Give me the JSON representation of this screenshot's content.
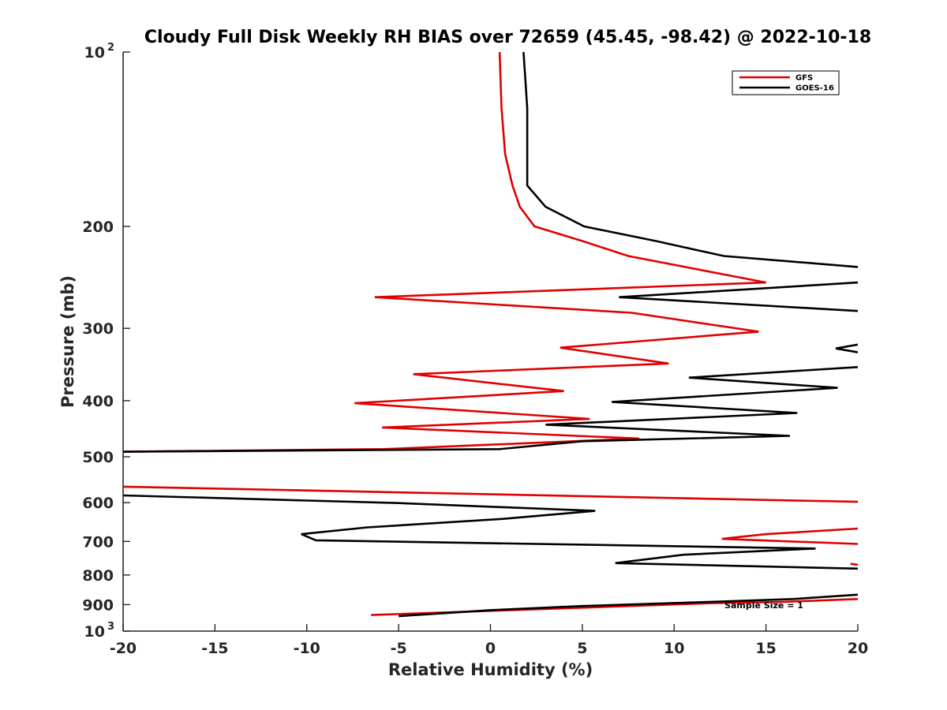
{
  "chart_data": {
    "type": "line",
    "title": "Cloudy Full Disk Weekly RH BIAS over 72659 (45.45, -98.42) @ 2022-10-18",
    "xlabel": "Relative Humidity (%)",
    "ylabel": "Pressure (mb)",
    "xlim": [
      -20,
      20
    ],
    "ylim": [
      100,
      1000
    ],
    "y_scale": "log",
    "y_reversed": true,
    "x_ticks": [
      "-20",
      "-15",
      "-10",
      "-5",
      "0",
      "5",
      "10",
      "15",
      "20"
    ],
    "y_ticks": [
      {
        "value": 100,
        "base": "10",
        "exp": "2"
      },
      {
        "value": 200,
        "label": "200"
      },
      {
        "value": 300,
        "label": "300"
      },
      {
        "value": 400,
        "label": "400"
      },
      {
        "value": 500,
        "label": "500"
      },
      {
        "value": 600,
        "label": "600"
      },
      {
        "value": 700,
        "label": "700"
      },
      {
        "value": 800,
        "label": "800"
      },
      {
        "value": 900,
        "label": "900"
      },
      {
        "value": 1000,
        "base": "10",
        "exp": "3"
      }
    ],
    "grid": false,
    "legend_position": "top-right",
    "annotation": "Sample Size = 1",
    "series": [
      {
        "name": "GFS",
        "color": "#e00000",
        "segments": [
          [
            [
              0.5,
              100
            ],
            [
              0.6,
              125
            ],
            [
              0.8,
              150
            ],
            [
              1.2,
              170
            ],
            [
              1.6,
              185
            ],
            [
              2.4,
              200
            ],
            [
              5,
              212
            ],
            [
              7.5,
              225
            ],
            [
              15,
              250
            ],
            [
              -6.3,
              265
            ],
            [
              7.7,
              282
            ],
            [
              14.6,
              304
            ],
            [
              3.8,
              324
            ],
            [
              9.7,
              345
            ],
            [
              -4.2,
              360
            ],
            [
              4,
              385
            ],
            [
              -7.4,
              404
            ],
            [
              5.4,
              430
            ],
            [
              -5.9,
              445
            ],
            [
              8.1,
              465
            ],
            [
              -5.8,
              485
            ],
            [
              -20,
              490
            ]
          ],
          [
            [
              -20,
              563
            ],
            [
              20,
              598
            ]
          ],
          [
            [
              20,
              665
            ],
            [
              15,
              680
            ],
            [
              12.6,
              693
            ],
            [
              20,
              707
            ]
          ],
          [
            [
              19.6,
              765
            ],
            [
              20,
              768
            ]
          ],
          [
            [
              20,
              880
            ],
            [
              16,
              890
            ],
            [
              12,
              895
            ],
            [
              -6.5,
              938
            ]
          ]
        ]
      },
      {
        "name": "GOES-16",
        "color": "#000000",
        "segments": [
          [
            [
              1.8,
              100
            ],
            [
              2,
              125
            ],
            [
              2,
              150
            ],
            [
              2,
              170
            ],
            [
              3,
              185
            ],
            [
              5.1,
              200
            ],
            [
              9,
              212
            ],
            [
              12.7,
              225
            ],
            [
              20,
              235
            ]
          ],
          [
            [
              20,
              250
            ],
            [
              7,
              265
            ],
            [
              20,
              280
            ]
          ],
          [
            [
              20,
              320
            ],
            [
              18.8,
              325
            ],
            [
              20,
              330
            ]
          ],
          [
            [
              20,
              350
            ],
            [
              10.8,
              365
            ],
            [
              18.9,
              380
            ],
            [
              6.6,
              402
            ],
            [
              16.7,
              420
            ],
            [
              3,
              440
            ],
            [
              16.3,
              460
            ],
            [
              5,
              470
            ],
            [
              0.5,
              485
            ],
            [
              -20,
              490
            ]
          ],
          [
            [
              -20,
              583
            ],
            [
              -5,
              601
            ],
            [
              5.7,
              620
            ],
            [
              0.7,
              640
            ],
            [
              -6.7,
              662
            ],
            [
              -10.3,
              680
            ],
            [
              -9.5,
              697
            ],
            [
              17.7,
              720
            ],
            [
              10.5,
              738
            ],
            [
              6.8,
              763
            ],
            [
              20,
              780
            ]
          ],
          [
            [
              20,
              865
            ],
            [
              16.5,
              880
            ],
            [
              12,
              890
            ],
            [
              5,
              905
            ],
            [
              0,
              920
            ],
            [
              -5,
              942
            ]
          ]
        ]
      }
    ]
  }
}
